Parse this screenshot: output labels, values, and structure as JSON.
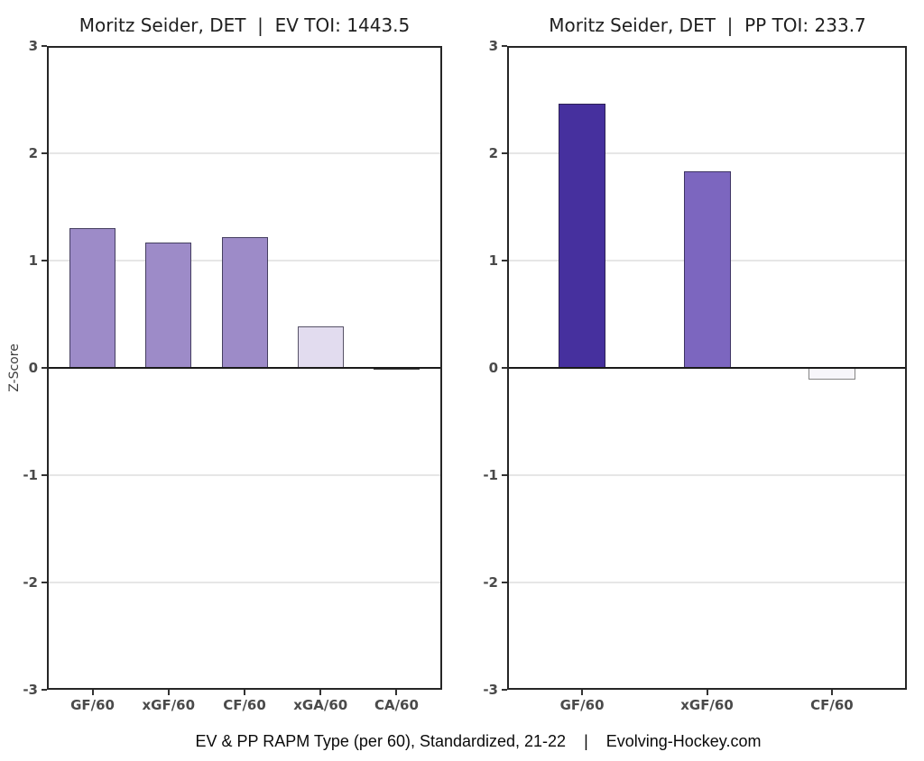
{
  "figure": {
    "background": "#ffffff",
    "caption": "EV & PP RAPM Type (per 60), Standardized, 21-22    |    Evolving-Hockey.com",
    "source": "Evolving-Hockey.com"
  },
  "chart_data": [
    {
      "type": "bar",
      "title": "Moritz Seider, DET  |  EV TOI: 1443.5",
      "player": "Moritz Seider",
      "team": "DET",
      "strength": "EV",
      "toi": 1443.5,
      "xlabel": "",
      "ylabel": "Z-Score",
      "categories": [
        "GF/60",
        "xGF/60",
        "CF/60",
        "xGA/60",
        "CA/60"
      ],
      "values": [
        1.3,
        1.17,
        1.22,
        0.39,
        -0.02
      ],
      "bar_colors": [
        "#9d8bc8",
        "#9d8bc8",
        "#9d8bc8",
        "#e2dcef",
        "#efedf5"
      ],
      "bar_borders": [
        "#453f60",
        "#453f60",
        "#453f60",
        "#575267",
        "#3f3f3f"
      ],
      "ylim": [
        -3,
        3
      ],
      "yticks": [
        3,
        2,
        1,
        0,
        -1,
        -2,
        -3
      ],
      "gridlines_at": [
        2,
        1,
        -1,
        -2
      ],
      "grid_color": "#e6e6e6",
      "zero_line_color": "#1a1a1a",
      "grid": "horizontal",
      "legend": "none"
    },
    {
      "type": "bar",
      "title": "Moritz Seider, DET  |  PP TOI: 233.7",
      "player": "Moritz Seider",
      "team": "DET",
      "strength": "PP",
      "toi": 233.7,
      "xlabel": "",
      "ylabel": "",
      "categories": [
        "GF/60",
        "xGF/60",
        "CF/60"
      ],
      "values": [
        2.46,
        1.83,
        -0.11
      ],
      "bar_colors": [
        "#46309e",
        "#7c66bf",
        "#f7f6fa"
      ],
      "bar_borders": [
        "#2c2155",
        "#3e3464",
        "#858585"
      ],
      "ylim": [
        -3,
        3
      ],
      "yticks": [
        3,
        2,
        1,
        0,
        -1,
        -2,
        -3
      ],
      "gridlines_at": [
        2,
        1,
        -1,
        -2
      ],
      "grid_color": "#e6e6e6",
      "zero_line_color": "#1a1a1a",
      "grid": "horizontal",
      "legend": "none"
    }
  ]
}
